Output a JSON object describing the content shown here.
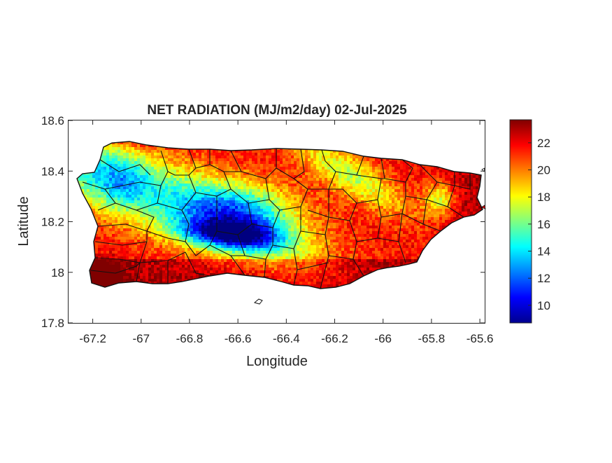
{
  "title": "NET RADIATION (MJ/m2/day) 02-Jul-2025",
  "xlabel": "Longitude",
  "ylabel": "Latitude",
  "chart_data": {
    "type": "heatmap",
    "title": "NET RADIATION (MJ/m2/day) 02-Jul-2025",
    "xlabel": "Longitude",
    "ylabel": "Latitude",
    "xlim": [
      -67.3,
      -65.58
    ],
    "ylim": [
      17.8,
      18.6
    ],
    "x_ticks": [
      -67.2,
      -67,
      -66.8,
      -66.6,
      -66.4,
      -66.2,
      -66,
      -65.8,
      -65.6
    ],
    "x_tick_labels": [
      "-67.2",
      "-67",
      "-66.8",
      "-66.6",
      "-66.4",
      "-66.2",
      "-66",
      "-65.8",
      "-65.6"
    ],
    "y_ticks": [
      17.8,
      18,
      18.2,
      18.4,
      18.6
    ],
    "y_tick_labels": [
      "17.8",
      "18",
      "18.2",
      "18.4",
      "18.6"
    ],
    "colorbar": {
      "colormap": "jet",
      "range": [
        8.7,
        23.7
      ],
      "ticks": [
        10,
        12,
        14,
        16,
        18,
        20,
        22
      ],
      "tick_labels": [
        "10",
        "12",
        "14",
        "16",
        "18",
        "20",
        "22"
      ]
    },
    "grid": false,
    "colors": {
      "low": "#00008f",
      "mid": "#80ff80",
      "high": "#800000"
    }
  }
}
